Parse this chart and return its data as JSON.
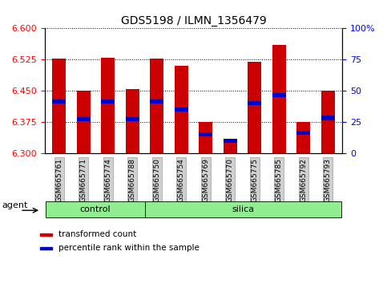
{
  "title": "GDS5198 / ILMN_1356479",
  "samples": [
    "GSM665761",
    "GSM665771",
    "GSM665774",
    "GSM665788",
    "GSM665750",
    "GSM665754",
    "GSM665769",
    "GSM665770",
    "GSM665775",
    "GSM665785",
    "GSM665792",
    "GSM665793"
  ],
  "groups": [
    "control",
    "control",
    "control",
    "control",
    "silica",
    "silica",
    "silica",
    "silica",
    "silica",
    "silica",
    "silica",
    "silica"
  ],
  "transformed_count": [
    6.528,
    6.45,
    6.53,
    6.455,
    6.528,
    6.51,
    6.375,
    6.325,
    6.52,
    6.56,
    6.375,
    6.45
  ],
  "percentile_rank": [
    6.425,
    6.382,
    6.425,
    6.382,
    6.425,
    6.405,
    6.345,
    6.33,
    6.42,
    6.44,
    6.35,
    6.385
  ],
  "y_min": 6.3,
  "y_max": 6.6,
  "y_ticks_left": [
    6.3,
    6.375,
    6.45,
    6.525,
    6.6
  ],
  "y_ticks_right": [
    0,
    25,
    50,
    75,
    100
  ],
  "bar_color": "#cc0000",
  "percentile_color": "#0000cc",
  "bar_width": 0.55,
  "legend_items": [
    {
      "label": "transformed count",
      "color": "#cc0000"
    },
    {
      "label": "percentile rank within the sample",
      "color": "#0000cc"
    }
  ],
  "agent_label": "agent",
  "group_label_control": "control",
  "group_label_silica": "silica",
  "control_count": 4,
  "total_count": 12
}
